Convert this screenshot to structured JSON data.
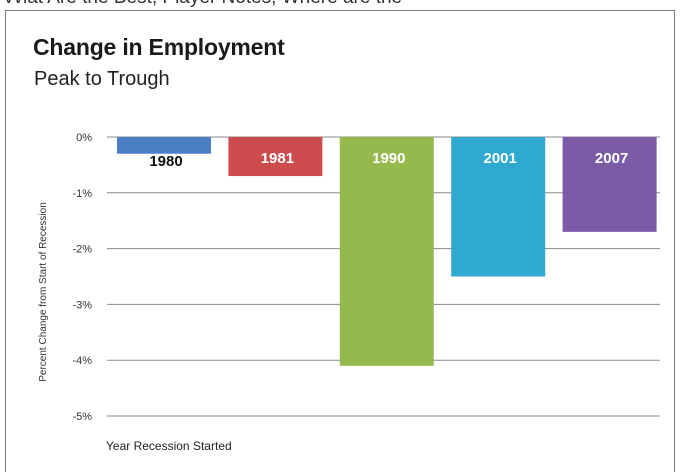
{
  "top_strip_text": "vviat Are the Best, Player Notes, Where are the",
  "chart_data": {
    "type": "bar",
    "title": "Change in Employment",
    "subtitle": "Peak to Trough",
    "categories": [
      "1980",
      "1981",
      "1990",
      "2001",
      "2007"
    ],
    "values": [
      -0.3,
      -0.7,
      -4.1,
      -2.5,
      -1.7
    ],
    "bar_colors": [
      "#4a7fc1",
      "#cc4c4e",
      "#96b94e",
      "#2fa9cf",
      "#7b5ba5"
    ],
    "label_colors": [
      "#111111",
      "#ffffff",
      "#ffffff",
      "#ffffff",
      "#ffffff"
    ],
    "xlabel": "Year Recession Started",
    "ylabel": "Percent Change  from Start of Recession",
    "yticks": [
      "0%",
      "-1%",
      "-2%",
      "-3%",
      "-4%",
      "-5%"
    ],
    "ytick_values": [
      0,
      -1,
      -2,
      -3,
      -4,
      -5
    ],
    "ylim": [
      -5,
      0
    ],
    "grid": true,
    "legend": "none"
  }
}
